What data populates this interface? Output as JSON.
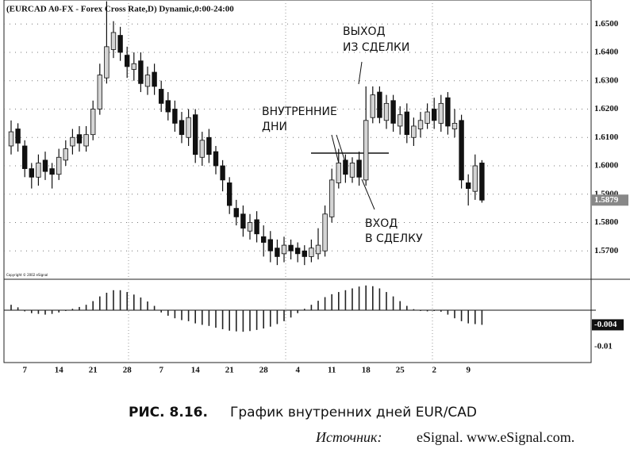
{
  "chart_data": {
    "type": "candlestick",
    "title": "(EURCAD A0-FX - Forex Cross Rate,D) Dynamic,0:00-24:00",
    "copyright": "Copyright © 2002 eSignal",
    "categories": [
      null,
      null,
      "7",
      null,
      null,
      null,
      null,
      "14",
      null,
      null,
      null,
      null,
      "21",
      null,
      null,
      null,
      null,
      "28",
      null,
      null,
      null,
      null,
      "7",
      null,
      null,
      null,
      null,
      "14",
      null,
      null,
      null,
      null,
      "21",
      null,
      null,
      null,
      null,
      "28",
      null,
      null,
      null,
      null,
      "4",
      null,
      null,
      null,
      null,
      "11",
      null,
      null,
      null,
      null,
      "18",
      null,
      null,
      null,
      null,
      "25",
      null,
      null,
      null,
      null,
      "2",
      null,
      null,
      null,
      null,
      "9",
      null,
      null
    ],
    "open": [
      1.607,
      1.613,
      1.607,
      1.599,
      1.596,
      1.602,
      1.599,
      1.597,
      1.602,
      1.607,
      1.611,
      1.607,
      1.611,
      1.62,
      1.631,
      1.641,
      1.646,
      1.639,
      1.634,
      1.637,
      1.628,
      1.633,
      1.627,
      1.623,
      1.62,
      1.616,
      1.61,
      1.618,
      1.603,
      1.61,
      1.605,
      1.6,
      1.594,
      1.585,
      1.583,
      1.577,
      1.581,
      1.575,
      1.574,
      1.571,
      1.569,
      1.572,
      1.571,
      1.57,
      1.568,
      1.569,
      1.57,
      1.582,
      1.594,
      1.602,
      1.596,
      1.602,
      1.595,
      1.617,
      1.626,
      1.616,
      1.623,
      1.614,
      1.619,
      1.61,
      1.613,
      1.615,
      1.62,
      1.615,
      1.624,
      1.613,
      1.616,
      1.594,
      1.591,
      1.601
    ],
    "high": [
      1.616,
      1.615,
      1.609,
      1.601,
      1.604,
      1.605,
      1.601,
      1.606,
      1.609,
      1.613,
      1.614,
      1.614,
      1.623,
      1.636,
      1.658,
      1.651,
      1.649,
      1.642,
      1.64,
      1.64,
      1.635,
      1.636,
      1.63,
      1.626,
      1.623,
      1.619,
      1.62,
      1.62,
      1.612,
      1.613,
      1.607,
      1.602,
      1.596,
      1.588,
      1.586,
      1.583,
      1.584,
      1.579,
      1.577,
      1.574,
      1.575,
      1.574,
      1.573,
      1.572,
      1.574,
      1.578,
      1.586,
      1.599,
      1.606,
      1.604,
      1.603,
      1.605,
      1.628,
      1.628,
      1.628,
      1.625,
      1.625,
      1.621,
      1.622,
      1.617,
      1.619,
      1.622,
      1.624,
      1.625,
      1.626,
      1.62,
      1.618,
      1.597,
      1.604,
      1.602
    ],
    "low": [
      1.604,
      1.605,
      1.596,
      1.592,
      1.593,
      1.595,
      1.592,
      1.595,
      1.6,
      1.604,
      1.605,
      1.605,
      1.609,
      1.618,
      1.629,
      1.638,
      1.637,
      1.631,
      1.63,
      1.626,
      1.625,
      1.625,
      1.619,
      1.616,
      1.612,
      1.608,
      1.607,
      1.601,
      1.6,
      1.601,
      1.597,
      1.591,
      1.583,
      1.579,
      1.575,
      1.574,
      1.573,
      1.568,
      1.566,
      1.565,
      1.566,
      1.567,
      1.566,
      1.565,
      1.566,
      1.567,
      1.568,
      1.58,
      1.592,
      1.594,
      1.594,
      1.593,
      1.593,
      1.615,
      1.615,
      1.613,
      1.612,
      1.611,
      1.608,
      1.607,
      1.61,
      1.613,
      1.613,
      1.612,
      1.611,
      1.61,
      1.592,
      1.586,
      1.588,
      1.587
    ],
    "close": [
      1.612,
      1.608,
      1.599,
      1.596,
      1.601,
      1.598,
      1.597,
      1.603,
      1.606,
      1.61,
      1.608,
      1.611,
      1.62,
      1.632,
      1.642,
      1.647,
      1.64,
      1.635,
      1.636,
      1.629,
      1.632,
      1.628,
      1.622,
      1.619,
      1.615,
      1.611,
      1.617,
      1.604,
      1.609,
      1.604,
      1.6,
      1.595,
      1.586,
      1.582,
      1.578,
      1.58,
      1.576,
      1.573,
      1.57,
      1.568,
      1.572,
      1.57,
      1.569,
      1.568,
      1.571,
      1.572,
      1.583,
      1.595,
      1.601,
      1.597,
      1.601,
      1.596,
      1.616,
      1.625,
      1.617,
      1.622,
      1.615,
      1.618,
      1.611,
      1.614,
      1.616,
      1.619,
      1.616,
      1.622,
      1.614,
      1.615,
      1.595,
      1.592,
      1.6,
      1.5879
    ],
    "up_color": "#d4d4d4",
    "down_color": "#111111",
    "ylim": [
      1.56,
      1.65846
    ],
    "yticks": [
      {
        "value": 1.57,
        "label": "1.5700"
      },
      {
        "value": 1.58,
        "label": "1.5800"
      },
      {
        "value": 1.59,
        "label": "1.5900"
      },
      {
        "value": 1.6,
        "label": "1.6000"
      },
      {
        "value": 1.61,
        "label": "1.6100"
      },
      {
        "value": 1.62,
        "label": "1.6200"
      },
      {
        "value": 1.63,
        "label": "1.6300"
      },
      {
        "value": 1.64,
        "label": "1.6400"
      },
      {
        "value": 1.65,
        "label": "1.6500"
      }
    ],
    "grid": true,
    "last_price": 1.5879,
    "annotations": [
      {
        "lines": [
          "ВЫХОД",
          "ИЗ СДЕЛКИ"
        ]
      },
      {
        "lines": [
          "ВНУТРЕННИЕ",
          "ДНИ"
        ]
      },
      {
        "lines": [
          "ВХОД",
          "В СДЕЛКУ"
        ]
      }
    ],
    "oscillator": {
      "type": "histogram",
      "values": [
        0.0015,
        0.0008,
        -0.0003,
        -0.0008,
        -0.001,
        -0.0012,
        -0.001,
        -0.0006,
        -0.0002,
        0.0004,
        0.0009,
        0.0015,
        0.0025,
        0.0038,
        0.0048,
        0.0055,
        0.0055,
        0.005,
        0.0043,
        0.0035,
        0.0024,
        0.0012,
        -0.0006,
        -0.0015,
        -0.0022,
        -0.0027,
        -0.003,
        -0.0036,
        -0.004,
        -0.0043,
        -0.0048,
        -0.0052,
        -0.0056,
        -0.0058,
        -0.0059,
        -0.0057,
        -0.0054,
        -0.005,
        -0.0045,
        -0.0038,
        -0.003,
        -0.002,
        -0.0008,
        0.0004,
        0.0015,
        0.0026,
        0.0036,
        0.0044,
        0.005,
        0.0055,
        0.006,
        0.0065,
        0.0068,
        0.0066,
        0.006,
        0.005,
        0.0038,
        0.0025,
        0.0012,
        0.0003,
        -0.0002,
        -0.0003,
        -0.0002,
        -0.0004,
        -0.0012,
        -0.0022,
        -0.003,
        -0.0036,
        -0.0038,
        -0.004
      ],
      "color": "#222222",
      "ylim": [
        -0.01435,
        0.0085
      ],
      "yticks": [
        -0.01
      ],
      "zero_line": 0,
      "last_value": -0.004
    }
  },
  "caption": {
    "label": "РИС. 8.16.",
    "text": "График внутренних дней EUR/CAD"
  },
  "source": {
    "label": "Источник:",
    "text": "eSignal. www.eSignal.com."
  }
}
